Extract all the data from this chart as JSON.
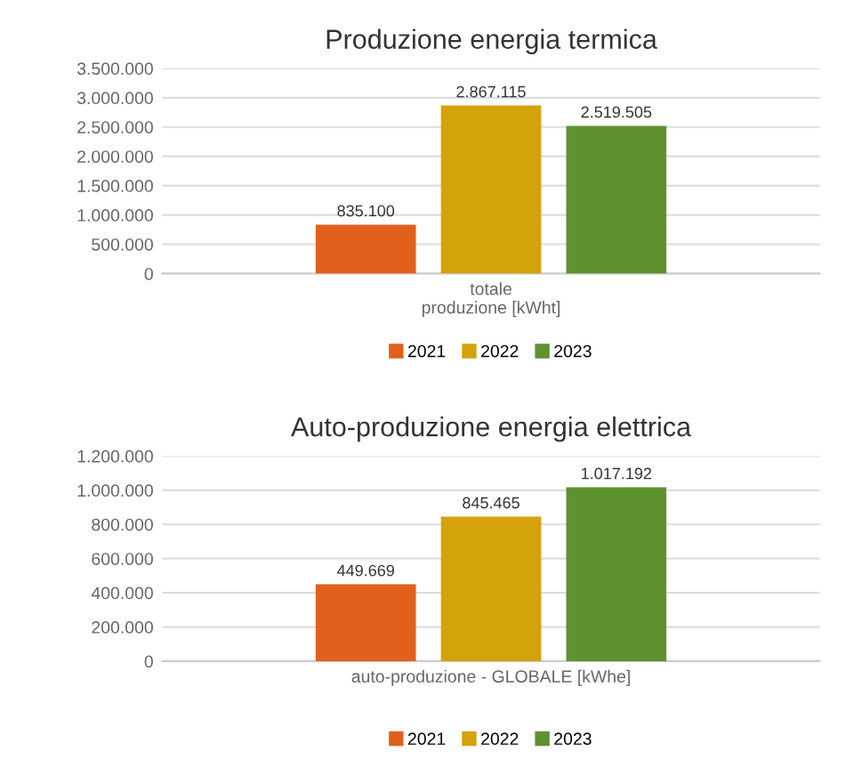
{
  "chart_data": [
    {
      "type": "bar",
      "title": "Produzione energia termica",
      "categories": [
        "totale\nproduzione [kWht]"
      ],
      "series": [
        {
          "name": "2021",
          "color": "#e0601c",
          "values": [
            835100
          ],
          "value_labels": [
            "835.100"
          ]
        },
        {
          "name": "2022",
          "color": "#d4a20a",
          "values": [
            2867115
          ],
          "value_labels": [
            "2.867.115"
          ]
        },
        {
          "name": "2023",
          "color": "#5e9230",
          "values": [
            2519505
          ],
          "value_labels": [
            "2.519.505"
          ]
        }
      ],
      "ylim": [
        0,
        3500000
      ],
      "yticks": [
        0,
        {
          "value": 500000,
          "label": "500.000"
        },
        {
          "value": 1000000,
          "label": "1.000.000"
        },
        {
          "value": 1500000,
          "label": "1.500.000"
        },
        {
          "value": 2000000,
          "label": "2.000.000"
        },
        {
          "value": 2500000,
          "label": "2.500.000"
        },
        {
          "value": 3000000,
          "label": "3.000.000"
        },
        {
          "value": 3500000,
          "label": "3.500.000"
        }
      ],
      "grid": "y",
      "legend": "bottom"
    },
    {
      "type": "bar",
      "title": "Auto-produzione energia elettrica",
      "categories": [
        "auto-produzione - GLOBALE [kWhe]"
      ],
      "series": [
        {
          "name": "2021",
          "color": "#e0601c",
          "values": [
            449669
          ],
          "value_labels": [
            "449.669"
          ]
        },
        {
          "name": "2022",
          "color": "#d4a20a",
          "values": [
            845465
          ],
          "value_labels": [
            "845.465"
          ]
        },
        {
          "name": "2023",
          "color": "#5e9230",
          "values": [
            1017192
          ],
          "value_labels": [
            "1.017.192"
          ]
        }
      ],
      "ylim": [
        0,
        1200000
      ],
      "yticks": [
        0,
        {
          "value": 200000,
          "label": "200.000"
        },
        {
          "value": 400000,
          "label": "400.000"
        },
        {
          "value": 600000,
          "label": "600.000"
        },
        {
          "value": 800000,
          "label": "800.000"
        },
        {
          "value": 1000000,
          "label": "1.000.000"
        },
        {
          "value": 1200000,
          "label": "1.200.000"
        }
      ],
      "grid": "y",
      "legend": "bottom"
    }
  ]
}
